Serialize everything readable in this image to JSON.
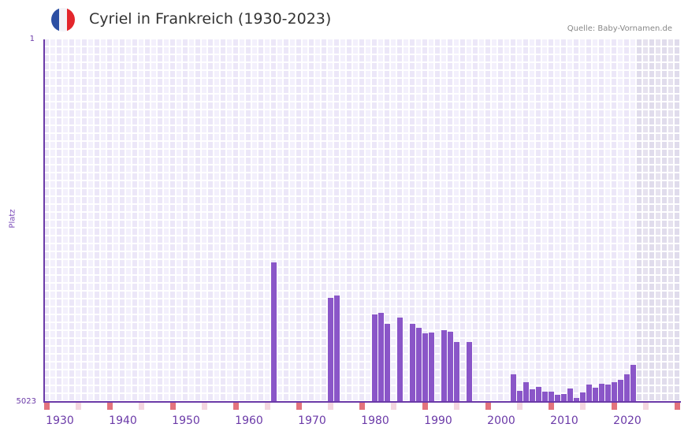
{
  "header": {
    "title": "Cyriel in Frankreich (1930-2023)",
    "source": "Quelle: Baby-Vornamen.de",
    "flag": {
      "icon": "france-flag-icon",
      "colors": [
        "#2c4fa3",
        "#f4f4f8",
        "#e3262c"
      ]
    }
  },
  "axis": {
    "y_label": "Platz",
    "y_top_tick": "1",
    "y_bottom_tick": "5023",
    "x_ticks": [
      "1930",
      "1940",
      "1950",
      "1960",
      "1970",
      "1980",
      "1990",
      "2000",
      "2010",
      "2020"
    ]
  },
  "colors": {
    "bar": "#8a56c8",
    "axis": "#6b3aa8",
    "grid_a": "#ece7f8",
    "grid_b": "#f3f0fc",
    "future_a": "#e0dcec",
    "future_b": "#e6e2ef",
    "marker_decade": "#e3737d",
    "marker_half": "#f4d6df"
  },
  "chart_data": {
    "type": "bar",
    "title": "Cyriel in Frankreich (1930-2023)",
    "xlabel": "",
    "ylabel": "Platz",
    "ylim": [
      5023,
      1
    ],
    "y_inverted": true,
    "x_range": [
      1928,
      2028
    ],
    "grid": true,
    "legend": null,
    "annotations": [
      "Quelle: Baby-Vornamen.de"
    ],
    "categories": [
      1964,
      1973,
      1974,
      1980,
      1981,
      1982,
      1984,
      1986,
      1987,
      1988,
      1989,
      1991,
      1992,
      1993,
      1995,
      2002,
      2003,
      2004,
      2005,
      2006,
      2007,
      2008,
      2009,
      2010,
      2011,
      2012,
      2013,
      2014,
      2015,
      2016,
      2017,
      2018,
      2019,
      2020,
      2021
    ],
    "values": [
      3091,
      3582,
      3549,
      3811,
      3789,
      3942,
      3855,
      3942,
      3997,
      4073,
      4062,
      4030,
      4051,
      4193,
      4193,
      4641,
      4870,
      4750,
      4848,
      4816,
      4881,
      4881,
      4925,
      4914,
      4837,
      4968,
      4892,
      4783,
      4826,
      4772,
      4783,
      4750,
      4717,
      4641,
      4510
    ]
  }
}
